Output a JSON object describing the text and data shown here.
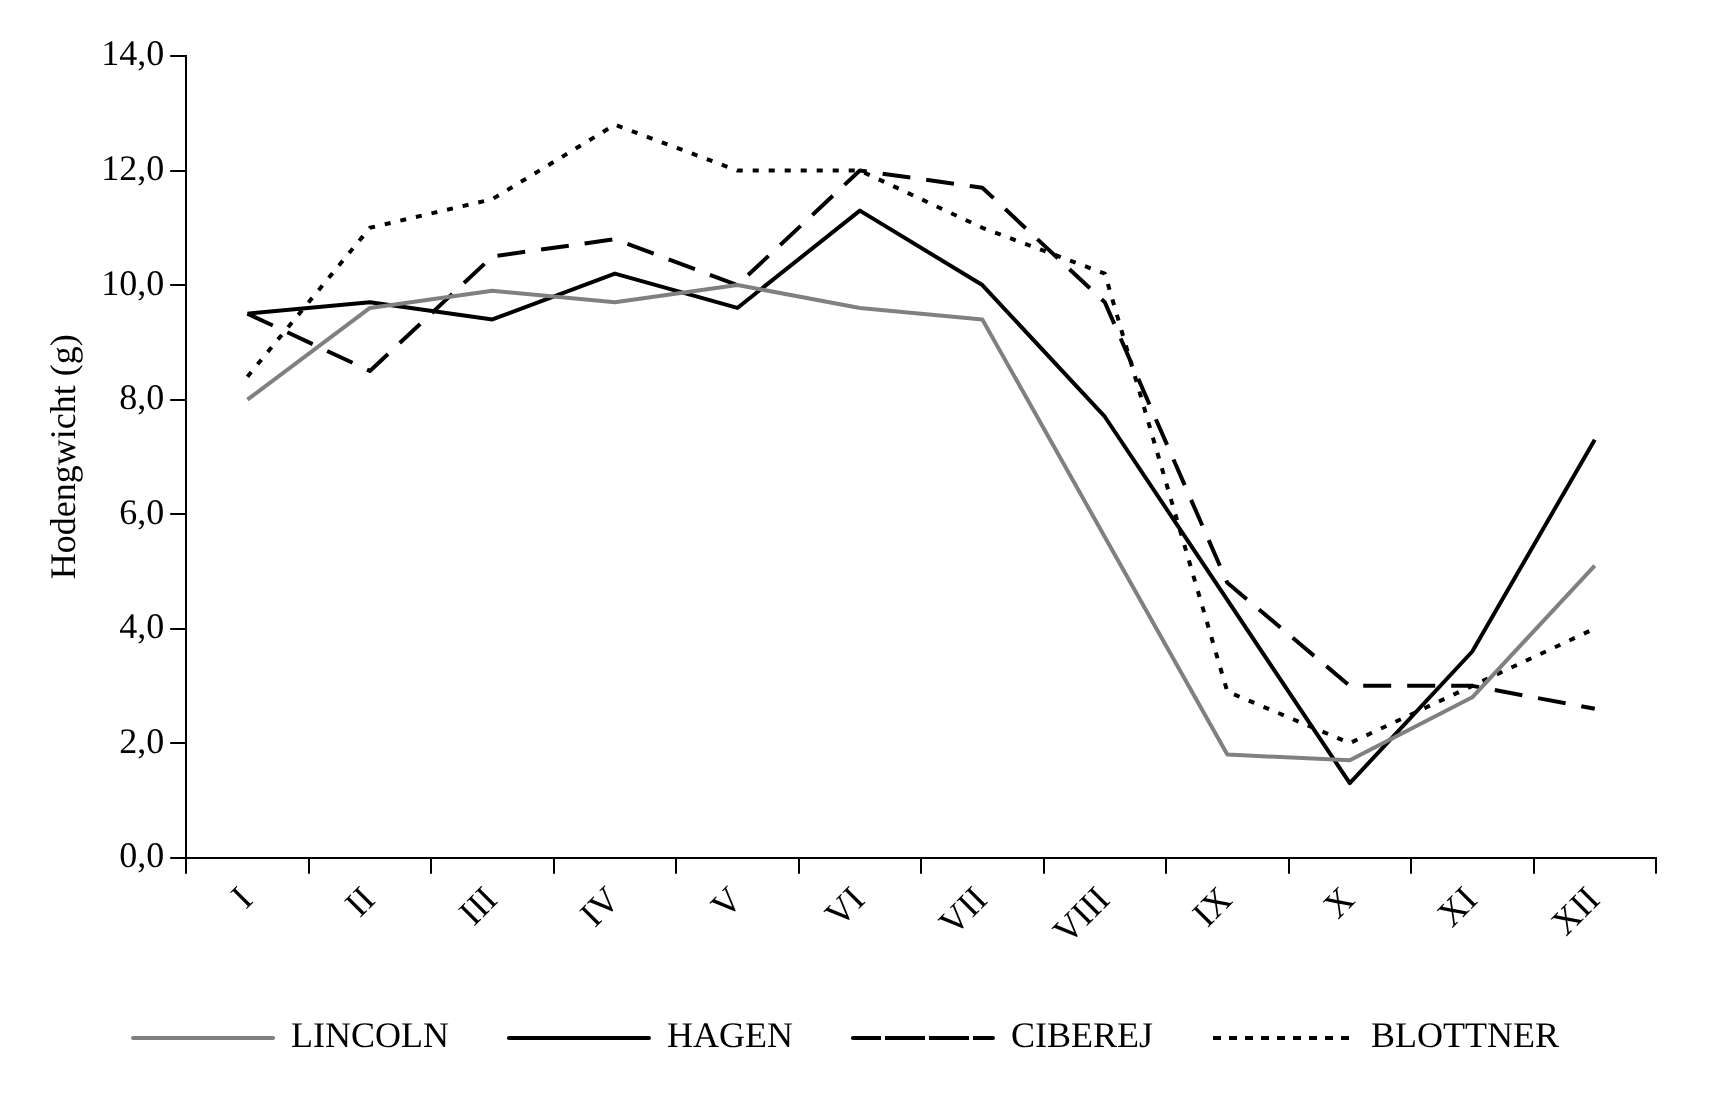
{
  "chart_data": {
    "type": "line",
    "ylabel": "Hodengwicht (g)",
    "categories": [
      "I",
      "II",
      "III",
      "IV",
      "V",
      "VI",
      "VII",
      "VIII",
      "IX",
      "X",
      "XI",
      "XII"
    ],
    "ylim": [
      0,
      14
    ],
    "yticks": [
      {
        "value": 0,
        "label": "0,0"
      },
      {
        "value": 2,
        "label": "2,0"
      },
      {
        "value": 4,
        "label": "4,0"
      },
      {
        "value": 6,
        "label": "6,0"
      },
      {
        "value": 8,
        "label": "8,0"
      },
      {
        "value": 10,
        "label": "10,0"
      },
      {
        "value": 12,
        "label": "12,0"
      },
      {
        "value": 14,
        "label": "14,0"
      }
    ],
    "grid": false,
    "legend": "bottom",
    "marker": "none",
    "series": [
      {
        "name": "LINCOLN",
        "color": "#808080",
        "line_style": "solid",
        "values": [
          8.0,
          9.6,
          9.9,
          9.7,
          10.0,
          9.6,
          9.4,
          5.6,
          1.8,
          1.7,
          2.8,
          5.1
        ]
      },
      {
        "name": "HAGEN",
        "color": "#000000",
        "line_style": "solid",
        "values": [
          9.5,
          9.7,
          9.4,
          10.2,
          9.6,
          11.3,
          10.0,
          7.7,
          4.5,
          1.3,
          3.6,
          7.3
        ]
      },
      {
        "name": "CIBEREJ",
        "color": "#000000",
        "line_style": "dashed",
        "values": [
          9.5,
          8.5,
          10.5,
          10.8,
          10.0,
          12.0,
          11.7,
          9.7,
          4.8,
          3.0,
          3.0,
          2.6
        ]
      },
      {
        "name": "BLOTTNER",
        "color": "#000000",
        "line_style": "dotted",
        "values": [
          8.4,
          11.0,
          11.5,
          12.8,
          12.0,
          12.0,
          11.0,
          10.2,
          2.9,
          2.0,
          3.0,
          4.0
        ]
      }
    ]
  }
}
